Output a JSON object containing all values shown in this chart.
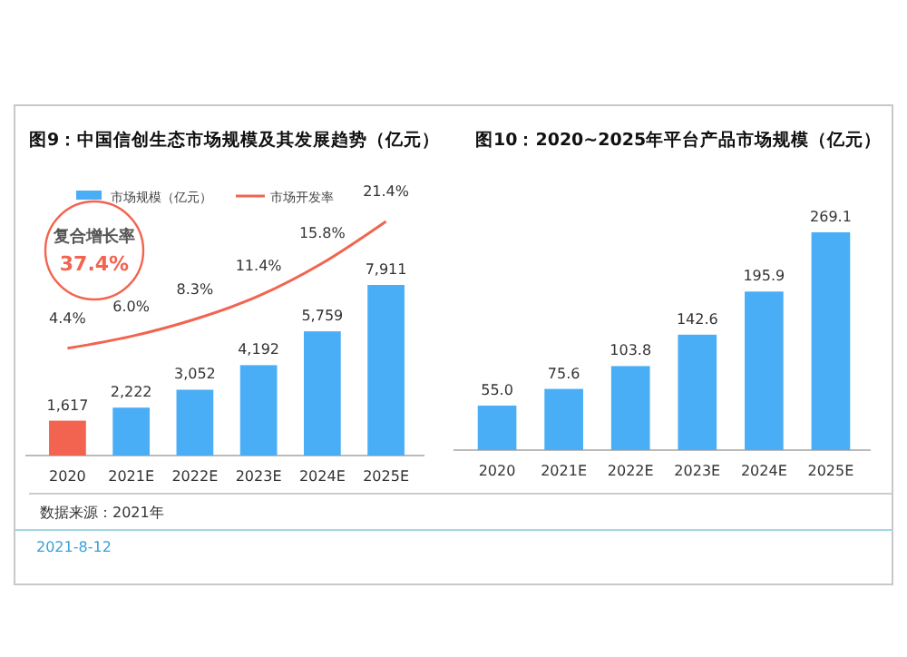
{
  "chart_data": [
    {
      "type": "bar",
      "title": "图9：中国信创生态市场规模及其发展趋势（亿元）",
      "categories": [
        "2020",
        "2021E",
        "2022E",
        "2023E",
        "2024E",
        "2025E"
      ],
      "series": [
        {
          "name": "市场规模（亿元）",
          "colors": [
            "#f26450",
            "#4aaef7",
            "#4aaef7",
            "#4aaef7",
            "#4aaef7",
            "#4aaef7"
          ],
          "color": "#4aaef7",
          "values": [
            1617,
            2222,
            3052,
            4192,
            5759,
            7911
          ],
          "value_labels": [
            "1,617",
            "2,222",
            "3,052",
            "4,192",
            "5,759",
            "7,911"
          ]
        },
        {
          "name": "市场开发率",
          "type": "line",
          "axis": "y2",
          "color": "#f26450",
          "values": [
            4.4,
            6.0,
            8.3,
            11.4,
            15.8,
            21.4
          ],
          "value_labels": [
            "4.4%",
            "6.0%",
            "8.3%",
            "11.4%",
            "15.8%",
            "21.4%"
          ]
        }
      ],
      "legend": "top",
      "annotations": [
        "复合增长率",
        "37.4%",
        "数据来源：2021年",
        "2021-8-12"
      ]
    },
    {
      "type": "bar",
      "title": "图10：2020~2025年平台产品市场规模（亿元）",
      "categories": [
        "2020",
        "2021E",
        "2022E",
        "2023E",
        "2024E",
        "2025E"
      ],
      "series": [
        {
          "color": "#4aaef7",
          "values": [
            55.0,
            75.6,
            103.8,
            142.6,
            195.9,
            269.1
          ],
          "value_labels": [
            "55.0",
            "75.6",
            "103.8",
            "142.6",
            "195.9",
            "269.1"
          ]
        }
      ]
    }
  ]
}
